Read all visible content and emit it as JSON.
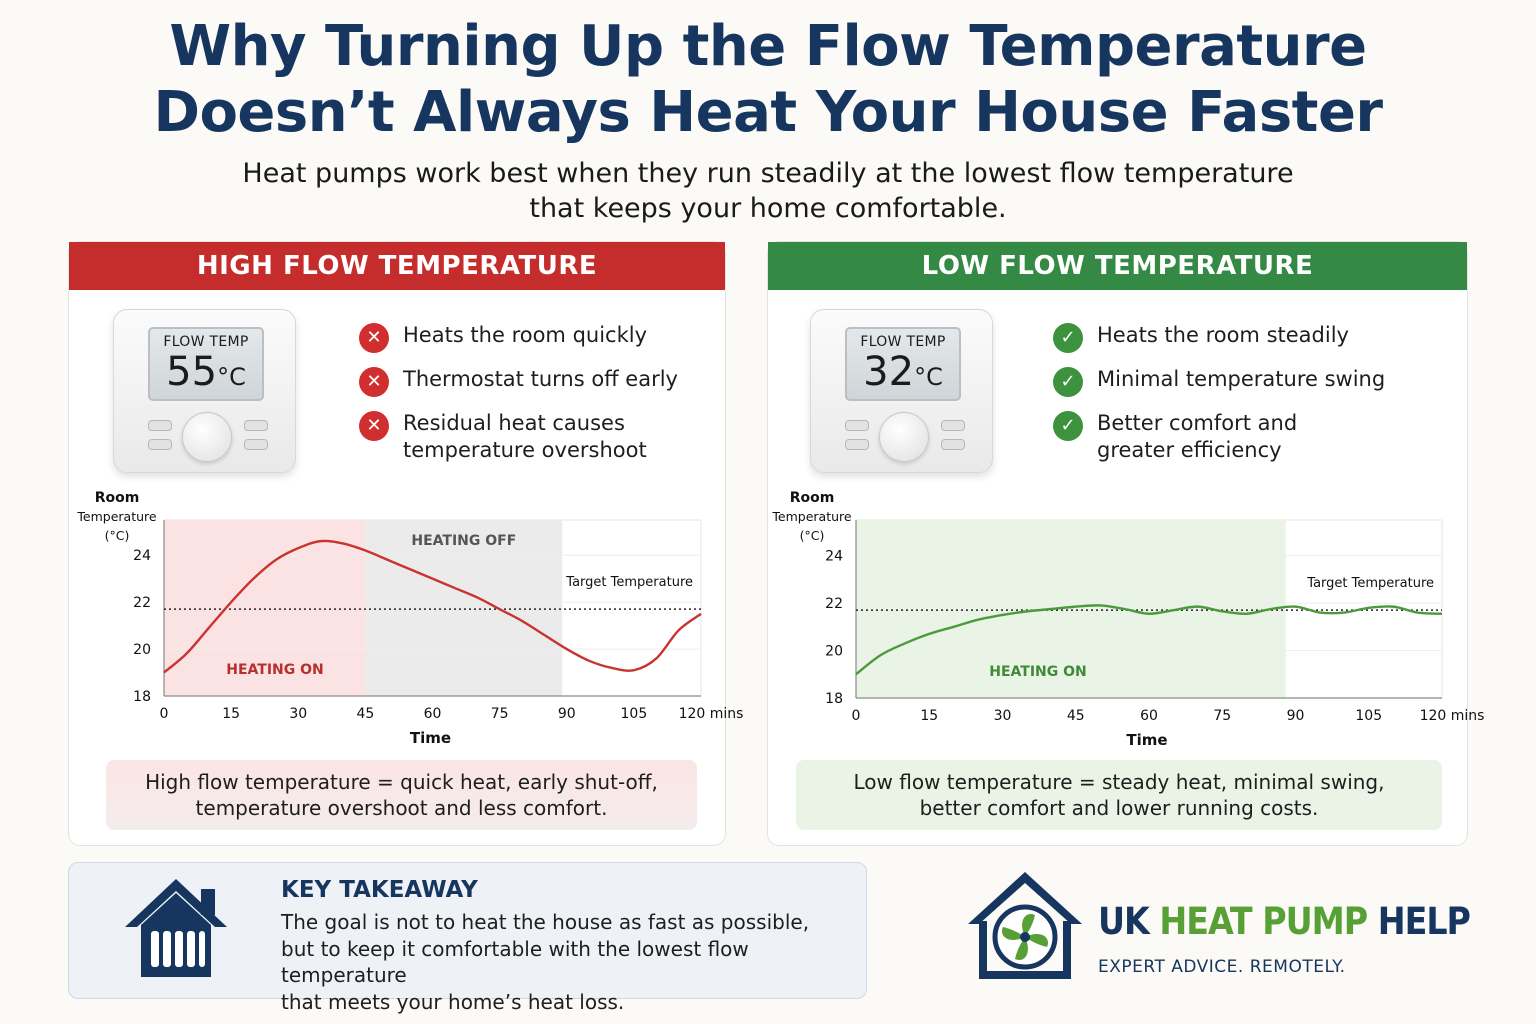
{
  "header": {
    "title_line1": "Why Turning Up the Flow Temperature",
    "title_line2": "Doesn’t Always Heat Your House Faster",
    "subtitle_line1": "Heat pumps work best when they run steadily at the lowest flow temperature",
    "subtitle_line2": "that keeps your home comfortable."
  },
  "high": {
    "heading": "HIGH FLOW TEMPERATURE",
    "thermostat": {
      "label": "FLOW TEMP",
      "value": "55",
      "unit": "°C"
    },
    "bullets": [
      {
        "icon": "x-icon",
        "line1": "Heats the room quickly",
        "line2": ""
      },
      {
        "icon": "x-icon",
        "line1": "Thermostat turns off early",
        "line2": ""
      },
      {
        "icon": "x-icon",
        "line1": "Residual heat causes",
        "line2": "temperature overshoot"
      }
    ],
    "caption_line1": "High flow temperature = quick heat, early shut-off,",
    "caption_line2": "temperature overshoot and less comfort.",
    "color": "#c42d2b"
  },
  "low": {
    "heading": "LOW FLOW TEMPERATURE",
    "thermostat": {
      "label": "FLOW TEMP",
      "value": "32",
      "unit": "°C"
    },
    "bullets": [
      {
        "icon": "check-icon",
        "line1": "Heats the room steadily",
        "line2": ""
      },
      {
        "icon": "check-icon",
        "line1": "Minimal temperature swing",
        "line2": ""
      },
      {
        "icon": "check-icon",
        "line1": "Better comfort and",
        "line2": "greater efficiency"
      }
    ],
    "caption_line1": "Low flow temperature = steady heat, minimal swing,",
    "caption_line2": "better comfort and lower running costs.",
    "color": "#348a45"
  },
  "chart_data": [
    {
      "type": "line",
      "ylabel": [
        "Room",
        "Temperature",
        "(°C)"
      ],
      "xlabel": "Time",
      "x_ticks": [
        "0",
        "15",
        "30",
        "45",
        "60",
        "75",
        "90",
        "105",
        "120 mins"
      ],
      "y_ticks": [
        "18",
        "20",
        "22",
        "24"
      ],
      "xlim": [
        0,
        120
      ],
      "ylim": [
        18,
        25.5
      ],
      "target": {
        "label": "Target Temperature",
        "value": 21.7
      },
      "regions": [
        {
          "label": "HEATING ON",
          "from": 0,
          "to": 45,
          "color": "#fbe3e3"
        },
        {
          "label": "HEATING OFF",
          "from": 45,
          "to": 89,
          "color": "#ebebeb"
        }
      ],
      "series": [
        {
          "color": "#c93431",
          "x": [
            0,
            5,
            10,
            15,
            20,
            25,
            30,
            35,
            40,
            45,
            50,
            55,
            60,
            65,
            70,
            75,
            80,
            85,
            90,
            95,
            100,
            105,
            110,
            115,
            120
          ],
          "y": [
            19.0,
            19.8,
            20.9,
            22.0,
            23.0,
            23.8,
            24.3,
            24.6,
            24.5,
            24.2,
            23.8,
            23.4,
            23.0,
            22.6,
            22.2,
            21.7,
            21.2,
            20.6,
            20.0,
            19.5,
            19.2,
            19.1,
            19.6,
            20.8,
            21.5
          ]
        }
      ]
    },
    {
      "type": "line",
      "ylabel": [
        "Room",
        "Temperature",
        "(°C)"
      ],
      "xlabel": "Time",
      "x_ticks": [
        "0",
        "15",
        "30",
        "45",
        "60",
        "75",
        "90",
        "105",
        "120 mins"
      ],
      "y_ticks": [
        "18",
        "20",
        "22",
        "24"
      ],
      "xlim": [
        0,
        120
      ],
      "ylim": [
        18,
        25.5
      ],
      "target": {
        "label": "Target Temperature",
        "value": 21.7
      },
      "regions": [
        {
          "label": "HEATING ON",
          "from": 0,
          "to": 88,
          "color": "#e9f3e6"
        }
      ],
      "series": [
        {
          "color": "#4c9a3d",
          "x": [
            0,
            5,
            10,
            15,
            20,
            25,
            30,
            35,
            40,
            45,
            50,
            55,
            60,
            65,
            70,
            75,
            80,
            85,
            90,
            95,
            100,
            105,
            110,
            115,
            120
          ],
          "y": [
            19.0,
            19.8,
            20.3,
            20.7,
            21.0,
            21.3,
            21.5,
            21.65,
            21.75,
            21.85,
            21.9,
            21.75,
            21.55,
            21.7,
            21.85,
            21.65,
            21.55,
            21.75,
            21.85,
            21.6,
            21.6,
            21.8,
            21.85,
            21.6,
            21.55
          ]
        }
      ]
    }
  ],
  "takeaway": {
    "heading": "KEY TAKEAWAY",
    "line1": "The goal is not to heat the house as fast as possible,",
    "line2": "but to keep it comfortable with the lowest flow temperature",
    "line3": "that meets your home’s heat loss."
  },
  "brand": {
    "name_part1": "UK ",
    "name_part2": "HEAT PUMP",
    "name_part3": " HELP",
    "tagline": "EXPERT ADVICE. REMOTELY.",
    "navy": "#16365f",
    "green": "#57a036"
  }
}
